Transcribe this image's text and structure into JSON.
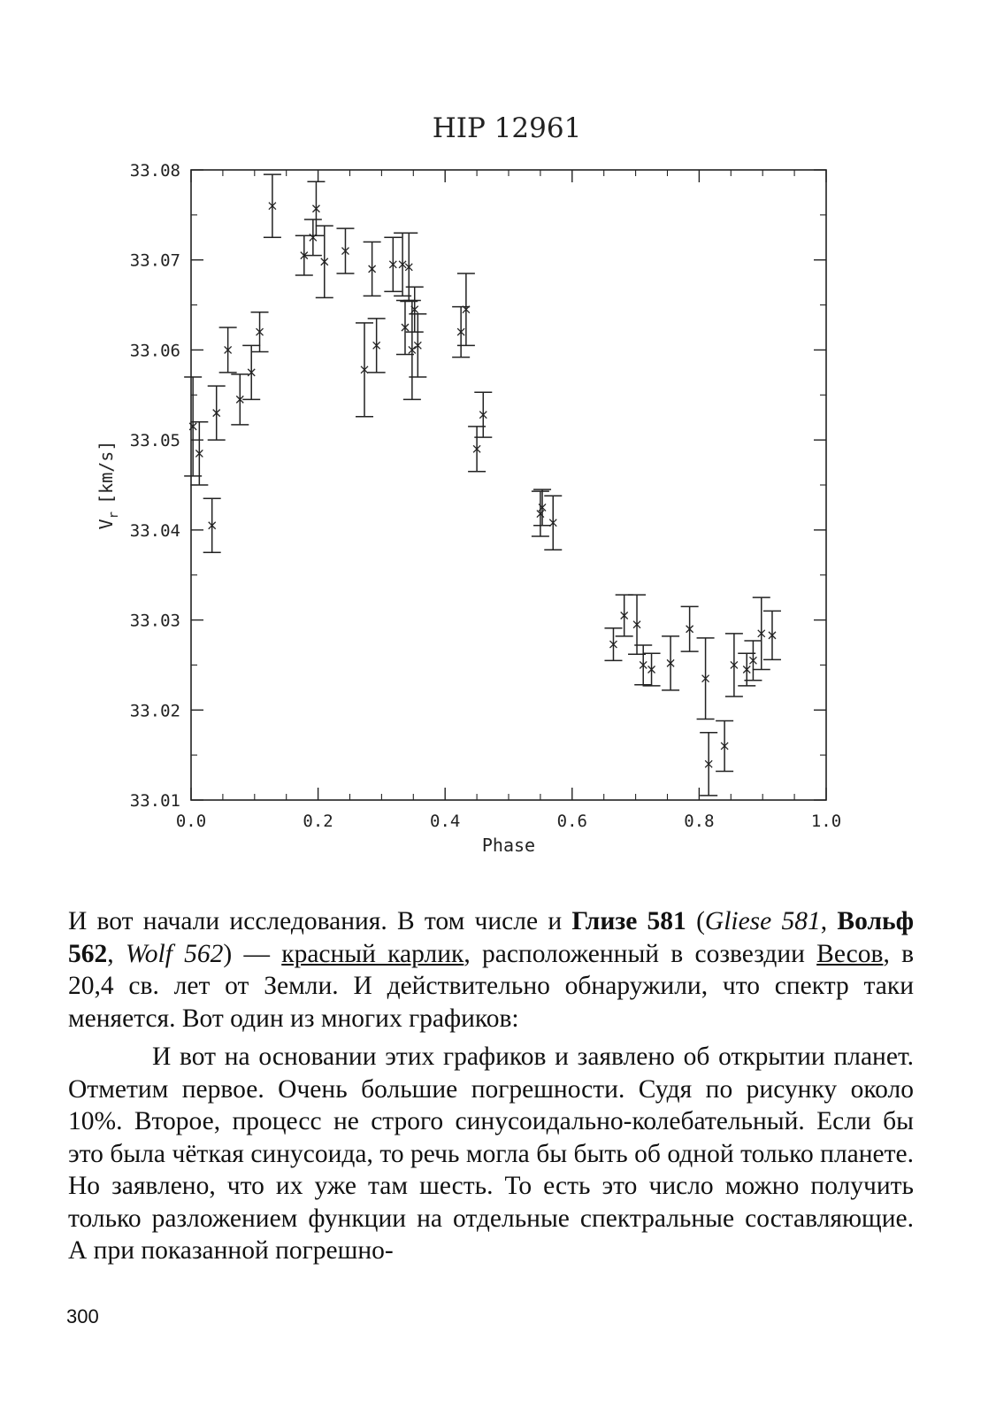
{
  "chart_data": {
    "type": "scatter",
    "title": "HIP 12961",
    "xlabel": "Phase",
    "ylabel_main": "V",
    "ylabel_sub": "r",
    "ylabel_unit": "[km/s]",
    "xlim": [
      0.0,
      1.0
    ],
    "ylim": [
      33.01,
      33.08
    ],
    "x_ticks": [
      "0.0",
      "0.2",
      "0.4",
      "0.6",
      "0.8",
      "1.0"
    ],
    "y_ticks": [
      "33.01",
      "33.02",
      "33.03",
      "33.04",
      "33.05",
      "33.06",
      "33.07",
      "33.08"
    ],
    "grid": false,
    "marker": "x with vertical error bars",
    "points": [
      {
        "x": 0.003,
        "y": 33.0515,
        "err": 0.0055
      },
      {
        "x": 0.013,
        "y": 33.0485,
        "err": 0.0035
      },
      {
        "x": 0.033,
        "y": 33.0405,
        "err": 0.003
      },
      {
        "x": 0.04,
        "y": 33.053,
        "err": 0.003
      },
      {
        "x": 0.058,
        "y": 33.06,
        "err": 0.0025
      },
      {
        "x": 0.077,
        "y": 33.0545,
        "err": 0.0028
      },
      {
        "x": 0.095,
        "y": 33.0575,
        "err": 0.003
      },
      {
        "x": 0.108,
        "y": 33.062,
        "err": 0.0022
      },
      {
        "x": 0.128,
        "y": 33.076,
        "err": 0.0035
      },
      {
        "x": 0.178,
        "y": 33.0705,
        "err": 0.0022
      },
      {
        "x": 0.192,
        "y": 33.0725,
        "err": 0.002
      },
      {
        "x": 0.197,
        "y": 33.0757,
        "err": 0.003
      },
      {
        "x": 0.21,
        "y": 33.0698,
        "err": 0.004
      },
      {
        "x": 0.243,
        "y": 33.071,
        "err": 0.0025
      },
      {
        "x": 0.273,
        "y": 33.0578,
        "err": 0.0052
      },
      {
        "x": 0.285,
        "y": 33.069,
        "err": 0.003
      },
      {
        "x": 0.292,
        "y": 33.0605,
        "err": 0.003
      },
      {
        "x": 0.318,
        "y": 33.0695,
        "err": 0.003
      },
      {
        "x": 0.333,
        "y": 33.0695,
        "err": 0.0035
      },
      {
        "x": 0.337,
        "y": 33.0625,
        "err": 0.003
      },
      {
        "x": 0.343,
        "y": 33.0692,
        "err": 0.0038
      },
      {
        "x": 0.348,
        "y": 33.06,
        "err": 0.0055
      },
      {
        "x": 0.352,
        "y": 33.0645,
        "err": 0.0025
      },
      {
        "x": 0.357,
        "y": 33.0605,
        "err": 0.0035
      },
      {
        "x": 0.425,
        "y": 33.062,
        "err": 0.0028
      },
      {
        "x": 0.433,
        "y": 33.0645,
        "err": 0.004
      },
      {
        "x": 0.45,
        "y": 33.049,
        "err": 0.0025
      },
      {
        "x": 0.46,
        "y": 33.0528,
        "err": 0.0025
      },
      {
        "x": 0.55,
        "y": 33.0418,
        "err": 0.0025
      },
      {
        "x": 0.553,
        "y": 33.0425,
        "err": 0.002
      },
      {
        "x": 0.57,
        "y": 33.0408,
        "err": 0.003
      },
      {
        "x": 0.665,
        "y": 33.0273,
        "err": 0.0018
      },
      {
        "x": 0.682,
        "y": 33.0305,
        "err": 0.0023
      },
      {
        "x": 0.702,
        "y": 33.0295,
        "err": 0.0033
      },
      {
        "x": 0.712,
        "y": 33.025,
        "err": 0.0022
      },
      {
        "x": 0.725,
        "y": 33.0245,
        "err": 0.0018
      },
      {
        "x": 0.755,
        "y": 33.0252,
        "err": 0.003
      },
      {
        "x": 0.785,
        "y": 33.029,
        "err": 0.0025
      },
      {
        "x": 0.81,
        "y": 33.0235,
        "err": 0.0045
      },
      {
        "x": 0.815,
        "y": 33.014,
        "err": 0.0035
      },
      {
        "x": 0.84,
        "y": 33.016,
        "err": 0.0028
      },
      {
        "x": 0.855,
        "y": 33.025,
        "err": 0.0035
      },
      {
        "x": 0.875,
        "y": 33.0245,
        "err": 0.0018
      },
      {
        "x": 0.885,
        "y": 33.0255,
        "err": 0.0022
      },
      {
        "x": 0.898,
        "y": 33.0285,
        "err": 0.004
      },
      {
        "x": 0.915,
        "y": 33.0283,
        "err": 0.0027
      }
    ]
  },
  "body_text": {
    "p1_a": "И вот начали исследования. В том числе и ",
    "p1_b": "Глизе 581",
    "p1_c": " (",
    "p1_d": "Gliese 581",
    "p1_e": ", ",
    "p1_f": "Вольф 562",
    "p1_g": ", ",
    "p1_h": "Wolf 562",
    "p1_i": ") — ",
    "p1_j": "красный карлик",
    "p1_k": ", расположенный в созвездии ",
    "p1_l": "Весов",
    "p1_m": ", в 20,4 св. лет от Земли. И действительно обнаружили, что спектр таки меняется. Вот один из многих графиков:",
    "p2": "И вот на основании этих графиков и заявлено об открытии планет. Отметим первое. Очень большие погрешности. Судя по рисунку около 10%. Второе, процесс не строго синусоидально-колебательный. Если бы это была чёткая синусоида, то речь могла бы быть об одной только планете. Но заявлено, что их уже там шесть. То есть это число можно получить только разложением функции на отдельные спектральные составляющие. А при показанной погрешно-"
  },
  "page_number": "300"
}
